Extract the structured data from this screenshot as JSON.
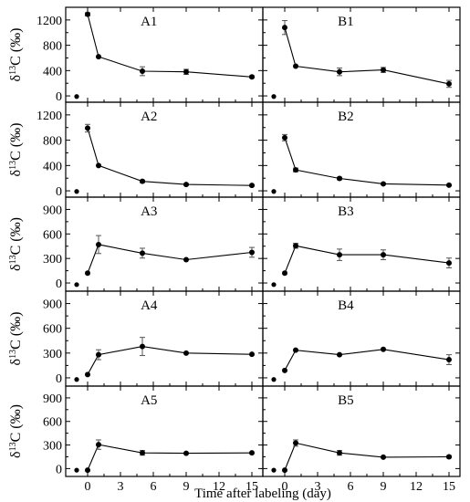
{
  "chart_data": {
    "type": "line",
    "x_axis": {
      "label": "Time after labeling (day)",
      "ticks": [
        0,
        3,
        6,
        9,
        12,
        15
      ],
      "range": [
        -2,
        16
      ]
    },
    "y_axis_label_parts": {
      "delta": "δ",
      "sup": "13",
      "rest": "C (‰)"
    },
    "rows": [
      {
        "ylim": [
          -100,
          1400
        ],
        "yticks": [
          0,
          400,
          800,
          1200
        ]
      },
      {
        "ylim": [
          -100,
          1400
        ],
        "yticks": [
          0,
          400,
          800,
          1200
        ]
      },
      {
        "ylim": [
          -100,
          1050
        ],
        "yticks": [
          0,
          300,
          600,
          900
        ]
      },
      {
        "ylim": [
          -100,
          1050
        ],
        "yticks": [
          0,
          300,
          600,
          900
        ]
      },
      {
        "ylim": [
          -100,
          1050
        ],
        "yticks": [
          0,
          300,
          600,
          900
        ]
      }
    ],
    "panels": [
      {
        "label": "A1",
        "row": 0,
        "col": 0,
        "control": {
          "x": -1,
          "y": -10
        },
        "points": [
          {
            "x": 0,
            "y": 1290,
            "err": 25
          },
          {
            "x": 1,
            "y": 620,
            "err": 0
          },
          {
            "x": 5,
            "y": 390,
            "err": 70
          },
          {
            "x": 9,
            "y": 380,
            "err": 40
          },
          {
            "x": 15,
            "y": 300,
            "err": 15
          }
        ]
      },
      {
        "label": "B1",
        "row": 0,
        "col": 1,
        "control": {
          "x": -1,
          "y": -10
        },
        "points": [
          {
            "x": 0,
            "y": 1080,
            "err": 110
          },
          {
            "x": 1,
            "y": 470,
            "err": 0
          },
          {
            "x": 5,
            "y": 380,
            "err": 60
          },
          {
            "x": 9,
            "y": 410,
            "err": 40
          },
          {
            "x": 15,
            "y": 190,
            "err": 55
          }
        ]
      },
      {
        "label": "A2",
        "row": 1,
        "col": 0,
        "control": {
          "x": -1,
          "y": -10
        },
        "points": [
          {
            "x": 0,
            "y": 990,
            "err": 60
          },
          {
            "x": 1,
            "y": 400,
            "err": 0
          },
          {
            "x": 5,
            "y": 150,
            "err": 20
          },
          {
            "x": 9,
            "y": 100,
            "err": 10
          },
          {
            "x": 15,
            "y": 85,
            "err": 10
          }
        ]
      },
      {
        "label": "B2",
        "row": 1,
        "col": 1,
        "control": {
          "x": -1,
          "y": -10
        },
        "points": [
          {
            "x": 0,
            "y": 840,
            "err": 50
          },
          {
            "x": 1,
            "y": 330,
            "err": 30
          },
          {
            "x": 5,
            "y": 195,
            "err": 20
          },
          {
            "x": 9,
            "y": 110,
            "err": 10
          },
          {
            "x": 15,
            "y": 90,
            "err": 10
          }
        ]
      },
      {
        "label": "A3",
        "row": 2,
        "col": 0,
        "control": {
          "x": -1,
          "y": -20
        },
        "points": [
          {
            "x": 0,
            "y": 120,
            "err": 0
          },
          {
            "x": 1,
            "y": 470,
            "err": 110
          },
          {
            "x": 5,
            "y": 365,
            "err": 60
          },
          {
            "x": 9,
            "y": 285,
            "err": 0
          },
          {
            "x": 15,
            "y": 375,
            "err": 60
          }
        ]
      },
      {
        "label": "B3",
        "row": 2,
        "col": 1,
        "control": {
          "x": -1,
          "y": -20
        },
        "points": [
          {
            "x": 0,
            "y": 120,
            "err": 0
          },
          {
            "x": 1,
            "y": 455,
            "err": 30
          },
          {
            "x": 5,
            "y": 345,
            "err": 70
          },
          {
            "x": 9,
            "y": 345,
            "err": 60
          },
          {
            "x": 15,
            "y": 245,
            "err": 60
          }
        ]
      },
      {
        "label": "A4",
        "row": 3,
        "col": 0,
        "control": {
          "x": -1,
          "y": -20
        },
        "points": [
          {
            "x": 0,
            "y": 40,
            "err": 0
          },
          {
            "x": 1,
            "y": 280,
            "err": 60
          },
          {
            "x": 5,
            "y": 380,
            "err": 110
          },
          {
            "x": 9,
            "y": 300,
            "err": 0
          },
          {
            "x": 15,
            "y": 285,
            "err": 0
          }
        ]
      },
      {
        "label": "B4",
        "row": 3,
        "col": 1,
        "control": {
          "x": -1,
          "y": -20
        },
        "points": [
          {
            "x": 0,
            "y": 90,
            "err": 0
          },
          {
            "x": 1,
            "y": 335,
            "err": 0
          },
          {
            "x": 5,
            "y": 280,
            "err": 0
          },
          {
            "x": 9,
            "y": 345,
            "err": 0
          },
          {
            "x": 15,
            "y": 220,
            "err": 60
          }
        ]
      },
      {
        "label": "A5",
        "row": 4,
        "col": 0,
        "control": {
          "x": -1,
          "y": -20
        },
        "points": [
          {
            "x": 0,
            "y": -20,
            "err": 0
          },
          {
            "x": 1,
            "y": 305,
            "err": 60
          },
          {
            "x": 5,
            "y": 200,
            "err": 30
          },
          {
            "x": 9,
            "y": 195,
            "err": 0
          },
          {
            "x": 15,
            "y": 200,
            "err": 0
          }
        ]
      },
      {
        "label": "B5",
        "row": 4,
        "col": 1,
        "control": {
          "x": -1,
          "y": -20
        },
        "points": [
          {
            "x": 0,
            "y": -20,
            "err": 0
          },
          {
            "x": 1,
            "y": 325,
            "err": 40
          },
          {
            "x": 5,
            "y": 200,
            "err": 30
          },
          {
            "x": 9,
            "y": 145,
            "err": 0
          },
          {
            "x": 15,
            "y": 150,
            "err": 15
          }
        ]
      }
    ]
  }
}
